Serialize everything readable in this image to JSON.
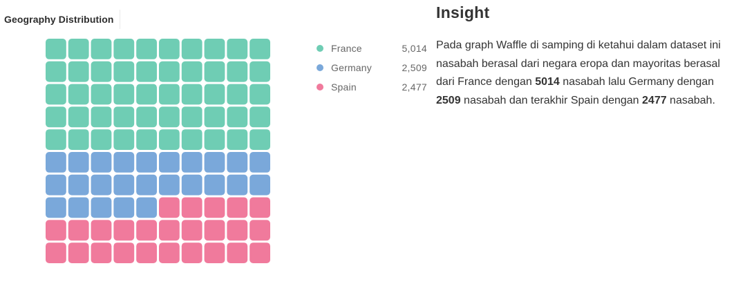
{
  "chart_data": {
    "type": "waffle",
    "title": "Geography Distribution",
    "grid": {
      "rows": 10,
      "cols": 10
    },
    "categories": [
      "France",
      "Germany",
      "Spain"
    ],
    "values": [
      5014,
      2509,
      2477
    ],
    "value_labels": [
      "5,014",
      "2,509",
      "2,477"
    ],
    "cells_per_category": [
      50,
      25,
      25
    ],
    "colors": [
      "#6fcdb4",
      "#7aa8da",
      "#f07a9c"
    ],
    "legend_position": "right"
  },
  "insight": {
    "title": "Insight",
    "segments": [
      {
        "text": "Pada graph Waffle di samping di ketahui dalam dataset ini nasabah berasal dari negara eropa dan mayoritas berasal dari France dengan ",
        "bold": false
      },
      {
        "text": "5014",
        "bold": true
      },
      {
        "text": " nasabah lalu Germany dengan ",
        "bold": false
      },
      {
        "text": "2509",
        "bold": true
      },
      {
        "text": " nasabah dan terakhir Spain dengan ",
        "bold": false
      },
      {
        "text": "2477",
        "bold": true
      },
      {
        "text": " nasabah.",
        "bold": false
      }
    ]
  }
}
